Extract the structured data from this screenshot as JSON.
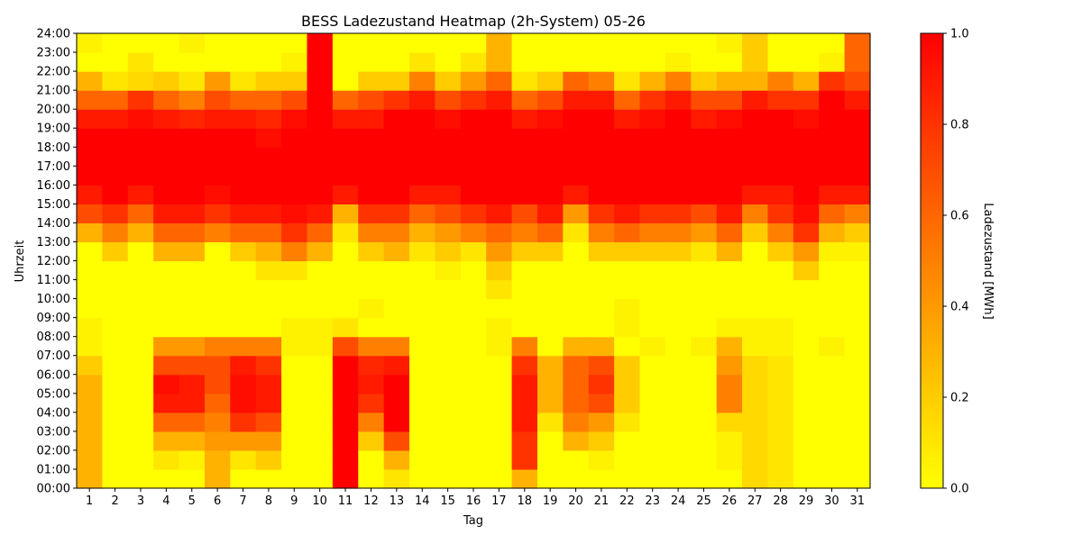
{
  "chart_data": {
    "type": "heatmap",
    "title": "BESS Ladezustand Heatmap (2h-System) 05-26",
    "xlabel": "Tag",
    "ylabel": "Uhrzeit",
    "colorbar_label": "Ladezustand [MWh]",
    "x_ticks": [
      "1",
      "2",
      "3",
      "4",
      "5",
      "6",
      "7",
      "8",
      "9",
      "10",
      "11",
      "12",
      "13",
      "14",
      "15",
      "16",
      "17",
      "18",
      "19",
      "20",
      "21",
      "22",
      "23",
      "24",
      "25",
      "26",
      "27",
      "28",
      "29",
      "30",
      "31"
    ],
    "y_ticks": [
      "00:00",
      "01:00",
      "02:00",
      "03:00",
      "04:00",
      "05:00",
      "06:00",
      "07:00",
      "08:00",
      "09:00",
      "10:00",
      "11:00",
      "12:00",
      "13:00",
      "14:00",
      "15:00",
      "16:00",
      "17:00",
      "18:00",
      "19:00",
      "20:00",
      "21:00",
      "22:00",
      "23:00",
      "24:00"
    ],
    "colorbar_ticks": [
      "0.0",
      "0.2",
      "0.4",
      "0.6",
      "0.8",
      "1.0"
    ],
    "color_range": [
      0,
      1
    ],
    "colormap": [
      "#ffff00",
      "#ff8000",
      "#ff0000"
    ],
    "note_resolution": "values per day at 24 hourly rows (00:00 bottom to 23:00 top)",
    "days": [
      {
        "day": 1,
        "values": [
          0.3,
          0.3,
          0.3,
          0.3,
          0.3,
          0.3,
          0.2,
          0.05,
          0.05,
          0.0,
          0.0,
          0.0,
          0.0,
          0.3,
          0.7,
          0.9,
          1.0,
          1.0,
          1.0,
          0.9,
          0.6,
          0.3,
          0.0,
          0.05
        ]
      },
      {
        "day": 2,
        "values": [
          0.0,
          0.0,
          0.0,
          0.0,
          0.0,
          0.0,
          0.0,
          0.0,
          0.0,
          0.0,
          0.0,
          0.0,
          0.2,
          0.5,
          0.8,
          1.0,
          1.0,
          1.0,
          1.0,
          0.9,
          0.6,
          0.1,
          0.0,
          0.0
        ]
      },
      {
        "day": 3,
        "values": [
          0.0,
          0.0,
          0.0,
          0.0,
          0.0,
          0.0,
          0.0,
          0.0,
          0.0,
          0.0,
          0.0,
          0.0,
          0.0,
          0.3,
          0.6,
          0.9,
          1.0,
          1.0,
          1.0,
          0.95,
          0.8,
          0.15,
          0.1,
          0.0
        ]
      },
      {
        "day": 4,
        "values": [
          0.0,
          0.1,
          0.3,
          0.6,
          0.9,
          0.95,
          0.7,
          0.4,
          0.0,
          0.0,
          0.0,
          0.0,
          0.3,
          0.6,
          0.9,
          1.0,
          1.0,
          1.0,
          1.0,
          0.9,
          0.6,
          0.2,
          0.0,
          0.0
        ]
      },
      {
        "day": 5,
        "values": [
          0.0,
          0.05,
          0.3,
          0.6,
          0.9,
          0.9,
          0.7,
          0.4,
          0.0,
          0.0,
          0.0,
          0.0,
          0.3,
          0.6,
          0.9,
          1.0,
          1.0,
          1.0,
          1.0,
          0.85,
          0.5,
          0.1,
          0.0,
          0.05
        ]
      },
      {
        "day": 6,
        "values": [
          0.3,
          0.3,
          0.4,
          0.5,
          0.6,
          0.7,
          0.7,
          0.5,
          0.0,
          0.0,
          0.0,
          0.0,
          0.0,
          0.5,
          0.8,
          0.95,
          1.0,
          1.0,
          1.0,
          0.9,
          0.7,
          0.4,
          0.0,
          0.0
        ]
      },
      {
        "day": 7,
        "values": [
          0.0,
          0.1,
          0.4,
          0.8,
          0.95,
          0.95,
          0.9,
          0.5,
          0.0,
          0.0,
          0.0,
          0.0,
          0.2,
          0.6,
          0.9,
          1.0,
          1.0,
          1.0,
          1.0,
          0.9,
          0.6,
          0.1,
          0.0,
          0.0
        ]
      },
      {
        "day": 8,
        "values": [
          0.0,
          0.2,
          0.4,
          0.7,
          0.9,
          0.9,
          0.8,
          0.5,
          0.0,
          0.0,
          0.0,
          0.1,
          0.3,
          0.6,
          0.9,
          1.0,
          1.0,
          1.0,
          0.95,
          0.85,
          0.6,
          0.2,
          0.0,
          0.0
        ]
      },
      {
        "day": 9,
        "values": [
          0.0,
          0.0,
          0.0,
          0.0,
          0.0,
          0.0,
          0.0,
          0.05,
          0.05,
          0.0,
          0.0,
          0.1,
          0.5,
          0.8,
          0.95,
          1.0,
          1.0,
          1.0,
          1.0,
          0.95,
          0.7,
          0.2,
          0.05,
          0.0
        ]
      },
      {
        "day": 10,
        "values": [
          0.0,
          0.0,
          0.0,
          0.0,
          0.0,
          0.0,
          0.0,
          0.05,
          0.05,
          0.0,
          0.0,
          0.0,
          0.3,
          0.6,
          0.9,
          1.0,
          1.0,
          1.0,
          1.0,
          1.0,
          1.0,
          1.0,
          1.0,
          1.0
        ]
      },
      {
        "day": 11,
        "values": [
          1.0,
          1.0,
          1.0,
          1.0,
          1.0,
          1.0,
          1.0,
          0.7,
          0.1,
          0.0,
          0.0,
          0.0,
          0.0,
          0.1,
          0.3,
          0.9,
          1.0,
          1.0,
          1.0,
          0.9,
          0.6,
          0.0,
          0.0,
          0.0
        ]
      },
      {
        "day": 12,
        "values": [
          0.0,
          0.0,
          0.2,
          0.5,
          0.8,
          0.9,
          0.85,
          0.5,
          0.0,
          0.05,
          0.0,
          0.0,
          0.2,
          0.5,
          0.8,
          1.0,
          1.0,
          1.0,
          1.0,
          0.9,
          0.7,
          0.2,
          0.0,
          0.0
        ]
      },
      {
        "day": 13,
        "values": [
          0.1,
          0.3,
          0.7,
          1.0,
          1.0,
          1.0,
          0.9,
          0.5,
          0.0,
          0.0,
          0.0,
          0.0,
          0.3,
          0.5,
          0.8,
          1.0,
          1.0,
          1.0,
          1.0,
          1.0,
          0.8,
          0.2,
          0.0,
          0.0
        ]
      },
      {
        "day": 14,
        "values": [
          0.0,
          0.0,
          0.0,
          0.0,
          0.0,
          0.0,
          0.0,
          0.0,
          0.0,
          0.0,
          0.0,
          0.0,
          0.1,
          0.3,
          0.6,
          0.9,
          1.0,
          1.0,
          1.0,
          1.0,
          0.9,
          0.5,
          0.1,
          0.0
        ]
      },
      {
        "day": 15,
        "values": [
          0.0,
          0.0,
          0.0,
          0.0,
          0.0,
          0.0,
          0.0,
          0.0,
          0.0,
          0.0,
          0.0,
          0.05,
          0.2,
          0.4,
          0.7,
          0.9,
          1.0,
          1.0,
          1.0,
          0.95,
          0.7,
          0.2,
          0.0,
          0.0
        ]
      },
      {
        "day": 16,
        "values": [
          0.0,
          0.0,
          0.0,
          0.0,
          0.0,
          0.0,
          0.0,
          0.0,
          0.0,
          0.0,
          0.0,
          0.0,
          0.1,
          0.5,
          0.8,
          1.0,
          1.0,
          1.0,
          1.0,
          1.0,
          0.8,
          0.4,
          0.1,
          0.0
        ]
      },
      {
        "day": 17,
        "values": [
          0.0,
          0.0,
          0.0,
          0.0,
          0.0,
          0.0,
          0.0,
          0.05,
          0.05,
          0.0,
          0.1,
          0.2,
          0.4,
          0.6,
          0.9,
          1.0,
          1.0,
          1.0,
          1.0,
          1.0,
          0.9,
          0.6,
          0.3,
          0.3
        ]
      },
      {
        "day": 18,
        "values": [
          0.3,
          0.8,
          0.8,
          0.9,
          0.9,
          0.9,
          0.8,
          0.5,
          0.0,
          0.0,
          0.0,
          0.0,
          0.2,
          0.5,
          0.7,
          1.0,
          1.0,
          1.0,
          1.0,
          0.9,
          0.6,
          0.1,
          0.0,
          0.0
        ]
      },
      {
        "day": 19,
        "values": [
          0.0,
          0.0,
          0.0,
          0.1,
          0.3,
          0.3,
          0.3,
          0.0,
          0.0,
          0.0,
          0.0,
          0.0,
          0.2,
          0.6,
          0.9,
          1.0,
          1.0,
          1.0,
          1.0,
          0.95,
          0.7,
          0.2,
          0.0,
          0.0
        ]
      },
      {
        "day": 20,
        "values": [
          0.0,
          0.0,
          0.3,
          0.5,
          0.6,
          0.6,
          0.6,
          0.3,
          0.0,
          0.0,
          0.0,
          0.0,
          0.0,
          0.1,
          0.4,
          0.9,
          1.0,
          1.0,
          1.0,
          1.0,
          0.9,
          0.6,
          0.0,
          0.0
        ]
      },
      {
        "day": 21,
        "values": [
          0.0,
          0.05,
          0.2,
          0.4,
          0.7,
          0.8,
          0.7,
          0.3,
          0.0,
          0.0,
          0.0,
          0.0,
          0.2,
          0.5,
          0.8,
          1.0,
          1.0,
          1.0,
          1.0,
          1.0,
          0.9,
          0.5,
          0.0,
          0.0
        ]
      },
      {
        "day": 22,
        "values": [
          0.0,
          0.0,
          0.0,
          0.1,
          0.2,
          0.2,
          0.2,
          0.0,
          0.05,
          0.05,
          0.0,
          0.0,
          0.2,
          0.6,
          0.9,
          1.0,
          1.0,
          1.0,
          1.0,
          0.9,
          0.6,
          0.1,
          0.0,
          0.0
        ]
      },
      {
        "day": 23,
        "values": [
          0.0,
          0.0,
          0.0,
          0.0,
          0.0,
          0.0,
          0.0,
          0.05,
          0.0,
          0.0,
          0.0,
          0.0,
          0.2,
          0.5,
          0.8,
          1.0,
          1.0,
          1.0,
          1.0,
          0.95,
          0.8,
          0.3,
          0.0,
          0.0
        ]
      },
      {
        "day": 24,
        "values": [
          0.0,
          0.0,
          0.0,
          0.0,
          0.0,
          0.0,
          0.0,
          0.0,
          0.0,
          0.0,
          0.0,
          0.0,
          0.2,
          0.5,
          0.8,
          1.0,
          1.0,
          1.0,
          1.0,
          1.0,
          0.9,
          0.5,
          0.05,
          0.0
        ]
      },
      {
        "day": 25,
        "values": [
          0.0,
          0.0,
          0.0,
          0.0,
          0.0,
          0.0,
          0.0,
          0.05,
          0.0,
          0.0,
          0.0,
          0.0,
          0.1,
          0.4,
          0.7,
          1.0,
          1.0,
          1.0,
          1.0,
          0.9,
          0.7,
          0.2,
          0.0,
          0.0
        ]
      },
      {
        "day": 26,
        "values": [
          0.0,
          0.05,
          0.05,
          0.15,
          0.5,
          0.5,
          0.4,
          0.3,
          0.05,
          0.0,
          0.0,
          0.0,
          0.3,
          0.6,
          0.9,
          1.0,
          1.0,
          1.0,
          1.0,
          0.95,
          0.7,
          0.3,
          0.0,
          0.05
        ]
      },
      {
        "day": 27,
        "values": [
          0.15,
          0.15,
          0.15,
          0.15,
          0.15,
          0.15,
          0.15,
          0.05,
          0.05,
          0.0,
          0.0,
          0.0,
          0.0,
          0.2,
          0.5,
          0.9,
          1.0,
          1.0,
          1.0,
          1.0,
          0.9,
          0.3,
          0.2,
          0.2
        ]
      },
      {
        "day": 28,
        "values": [
          0.1,
          0.1,
          0.1,
          0.1,
          0.1,
          0.1,
          0.1,
          0.05,
          0.05,
          0.0,
          0.0,
          0.0,
          0.2,
          0.5,
          0.8,
          0.9,
          1.0,
          1.0,
          1.0,
          1.0,
          0.8,
          0.5,
          0.0,
          0.0
        ]
      },
      {
        "day": 29,
        "values": [
          0.0,
          0.0,
          0.0,
          0.0,
          0.0,
          0.0,
          0.0,
          0.0,
          0.0,
          0.0,
          0.0,
          0.2,
          0.4,
          0.8,
          0.95,
          1.0,
          1.0,
          1.0,
          1.0,
          0.95,
          0.8,
          0.3,
          0.0,
          0.0
        ]
      },
      {
        "day": 30,
        "values": [
          0.0,
          0.0,
          0.0,
          0.0,
          0.0,
          0.0,
          0.0,
          0.05,
          0.0,
          0.0,
          0.0,
          0.0,
          0.05,
          0.3,
          0.6,
          0.9,
          1.0,
          1.0,
          1.0,
          1.0,
          1.0,
          0.8,
          0.05,
          0.0
        ]
      },
      {
        "day": 31,
        "values": [
          0.0,
          0.0,
          0.0,
          0.0,
          0.0,
          0.0,
          0.0,
          0.0,
          0.0,
          0.0,
          0.0,
          0.0,
          0.05,
          0.2,
          0.5,
          0.9,
          1.0,
          1.0,
          1.0,
          1.0,
          0.9,
          0.7,
          0.6,
          0.6
        ]
      }
    ]
  }
}
